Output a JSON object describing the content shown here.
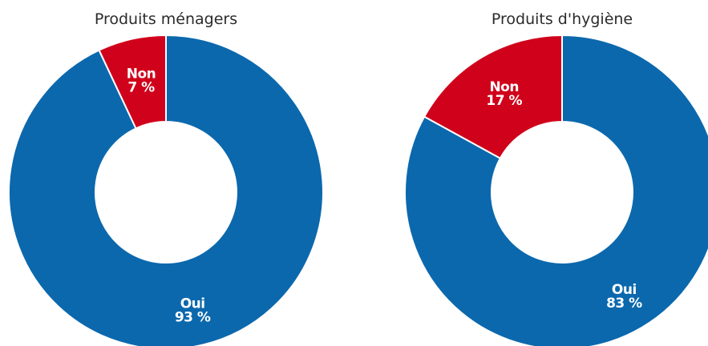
{
  "chart_data": [
    {
      "type": "pie",
      "style": "donut",
      "title": "Produits ménagers",
      "slices": [
        {
          "label": "Oui",
          "value": 93,
          "value_label": "93 %",
          "color": "#0b68ad"
        },
        {
          "label": "Non",
          "value": 7,
          "value_label": "7 %",
          "color": "#d0021b"
        }
      ]
    },
    {
      "type": "pie",
      "style": "donut",
      "title": "Produits d'hygiène",
      "slices": [
        {
          "label": "Oui",
          "value": 83,
          "value_label": "83 %",
          "color": "#0b68ad"
        },
        {
          "label": "Non",
          "value": 17,
          "value_label": "17 %",
          "color": "#d0021b"
        }
      ]
    }
  ]
}
